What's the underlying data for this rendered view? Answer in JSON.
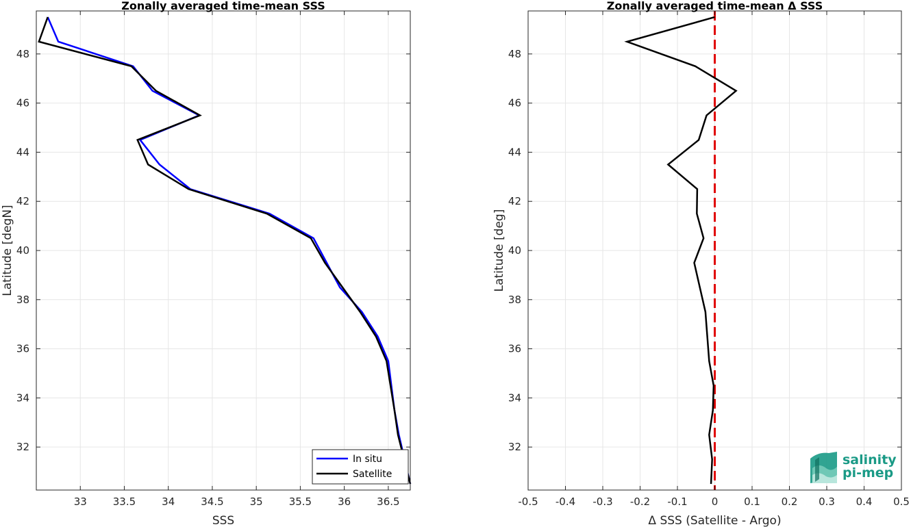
{
  "chart_data": [
    {
      "type": "line",
      "title": "Zonally averaged time-mean SSS",
      "xlabel": "SSS",
      "ylabel": "Latitude [degN]",
      "xlim": [
        32.5,
        36.75
      ],
      "ylim": [
        30.25,
        49.75
      ],
      "xticks": [
        33,
        33.5,
        34,
        34.5,
        35,
        35.5,
        36,
        36.5
      ],
      "xtick_labels": [
        "33",
        "33.5",
        "34",
        "34.5",
        "35",
        "35.5",
        "36",
        "36.5"
      ],
      "yticks": [
        32,
        34,
        36,
        38,
        40,
        42,
        44,
        46,
        48
      ],
      "ytick_labels": [
        "32",
        "34",
        "36",
        "38",
        "40",
        "42",
        "44",
        "46",
        "48"
      ],
      "grid": true,
      "legend_position": "bottom-right",
      "series": [
        {
          "name": "In situ",
          "color": "#0000ff",
          "x": [
            36.75,
            36.62,
            36.57,
            36.5,
            36.38,
            36.2,
            35.95,
            35.65,
            35.15,
            34.25,
            33.9,
            33.68,
            34.35,
            33.82,
            33.6,
            32.75,
            32.63
          ],
          "y": [
            30.5,
            32.5,
            33.5,
            35.5,
            36.5,
            37.5,
            38.5,
            40.5,
            41.5,
            42.5,
            43.5,
            44.5,
            45.5,
            46.5,
            47.5,
            48.5,
            49.5
          ]
        },
        {
          "name": "Satellite",
          "color": "#000000",
          "x": [
            36.75,
            36.61,
            36.57,
            36.48,
            36.36,
            36.18,
            35.78,
            35.62,
            35.12,
            34.23,
            33.77,
            33.65,
            34.36,
            33.86,
            33.58,
            32.53,
            32.63
          ],
          "y": [
            30.5,
            32.5,
            33.5,
            35.5,
            36.5,
            37.5,
            39.5,
            40.5,
            41.5,
            42.5,
            43.5,
            44.5,
            45.5,
            46.5,
            47.5,
            48.5,
            49.5
          ]
        }
      ]
    },
    {
      "type": "line",
      "title": "Zonally averaged time-mean Δ SSS",
      "xlabel": "Δ SSS (Satellite - Argo)",
      "ylabel": "Latitude [deg]",
      "xlim": [
        -0.5,
        0.5
      ],
      "ylim": [
        30.25,
        49.75
      ],
      "xticks": [
        -0.5,
        -0.4,
        -0.3,
        -0.2,
        -0.1,
        0,
        0.1,
        0.2,
        0.3,
        0.4,
        0.5
      ],
      "xtick_labels": [
        "-0.5",
        "-0.4",
        "-0.3",
        "-0.2",
        "-0.1",
        "0",
        "0.1",
        "0.2",
        "0.3",
        "0.4",
        "0.5"
      ],
      "yticks": [
        32,
        34,
        36,
        38,
        40,
        42,
        44,
        46,
        48
      ],
      "ytick_labels": [
        "32",
        "34",
        "36",
        "38",
        "40",
        "42",
        "44",
        "46",
        "48"
      ],
      "grid": true,
      "series": [
        {
          "color": "#000000",
          "x": [
            -0.01,
            -0.007,
            -0.015,
            -0.005,
            -0.003,
            -0.015,
            -0.02,
            -0.025,
            -0.055,
            -0.03,
            -0.048,
            -0.047,
            -0.125,
            -0.043,
            -0.022,
            0.057,
            -0.052,
            -0.235,
            0.0
          ],
          "y": [
            30.5,
            31.5,
            32.5,
            33.5,
            34.5,
            35.5,
            36.5,
            37.5,
            39.5,
            40.5,
            41.5,
            42.5,
            43.5,
            44.5,
            45.5,
            46.5,
            47.5,
            48.5,
            49.5
          ]
        }
      ],
      "reference_line": {
        "x": 0,
        "color": "#e00000",
        "style": "dashed"
      }
    }
  ],
  "logo": {
    "line1": "salinity",
    "line2": "pi-mep",
    "color": "#1a9a86"
  }
}
